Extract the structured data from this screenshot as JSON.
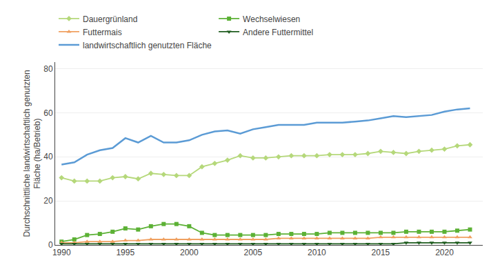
{
  "chart_data": {
    "type": "line",
    "ylabel": "Durchschnittliche landwirtschaftlich genutzten\nFläche (ha/Betrieb)",
    "x": [
      1990,
      1991,
      1992,
      1993,
      1994,
      1995,
      1996,
      1997,
      1998,
      1999,
      2000,
      2001,
      2002,
      2003,
      2004,
      2005,
      2006,
      2007,
      2008,
      2009,
      2010,
      2011,
      2012,
      2013,
      2014,
      2015,
      2016,
      2017,
      2018,
      2019,
      2020,
      2021,
      2022
    ],
    "series": [
      {
        "name": "Dauergrünland",
        "color": "#b5d87a",
        "marker": "diamond",
        "values": [
          30.5,
          29.0,
          29.0,
          29.0,
          30.5,
          31.0,
          30.0,
          32.5,
          32.0,
          31.5,
          31.5,
          35.5,
          37.0,
          38.5,
          40.5,
          39.5,
          39.5,
          40.0,
          40.5,
          40.5,
          40.5,
          41.0,
          41.0,
          41.0,
          41.5,
          42.5,
          42.0,
          41.5,
          42.5,
          43.0,
          43.5,
          45.0,
          45.5
        ]
      },
      {
        "name": "Wechselwiesen",
        "color": "#5cb135",
        "marker": "square",
        "values": [
          1.5,
          2.5,
          4.5,
          5.0,
          6.0,
          7.5,
          7.0,
          8.5,
          9.5,
          9.5,
          8.5,
          5.5,
          4.5,
          4.5,
          4.5,
          4.5,
          4.5,
          5.0,
          5.0,
          5.0,
          5.0,
          5.5,
          5.5,
          5.5,
          5.5,
          5.5,
          5.5,
          6.0,
          6.0,
          6.0,
          6.0,
          6.5,
          7.0
        ]
      },
      {
        "name": "Futtermais",
        "color": "#f0a060",
        "marker": "triangle-up",
        "values": [
          1.0,
          1.0,
          1.5,
          1.5,
          1.5,
          2.0,
          2.0,
          2.5,
          2.5,
          2.5,
          2.5,
          2.5,
          2.5,
          2.5,
          2.5,
          2.5,
          2.5,
          3.0,
          3.0,
          3.0,
          3.0,
          3.0,
          3.0,
          3.0,
          3.0,
          3.5,
          3.5,
          3.5,
          3.5,
          3.5,
          3.5,
          3.5,
          3.5
        ]
      },
      {
        "name": "Andere Futtermittel",
        "color": "#1e5c1e",
        "marker": "triangle-down",
        "values": [
          0.5,
          0.5,
          0.5,
          0.5,
          0.5,
          0.5,
          0.5,
          0.5,
          0.5,
          0.5,
          0.5,
          0.5,
          0.5,
          0.5,
          0.5,
          0.5,
          0.5,
          0.5,
          0.5,
          0.5,
          0.5,
          0.5,
          0.5,
          0.5,
          0.5,
          0.5,
          0.5,
          1.0,
          1.0,
          1.0,
          1.0,
          1.0,
          1.0
        ]
      },
      {
        "name": "landwirtschaftlich genutzten Fläche",
        "color": "#5b9bd5",
        "values": [
          36.5,
          37.5,
          41.0,
          43.0,
          44.0,
          48.5,
          46.5,
          49.5,
          46.5,
          46.5,
          47.5,
          50.0,
          51.5,
          52.0,
          50.5,
          52.5,
          53.5,
          54.5,
          54.5,
          54.5,
          55.5,
          55.5,
          55.5,
          56.0,
          56.5,
          57.5,
          58.5,
          58.0,
          58.5,
          59.0,
          60.5,
          61.5,
          62.0
        ]
      }
    ],
    "xlim": [
      1989.5,
      2023
    ],
    "xticks": [
      1990,
      1995,
      2000,
      2005,
      2010,
      2015,
      2020
    ],
    "ylim": [
      0,
      83
    ],
    "yticks": [
      0,
      20,
      40,
      60,
      80
    ],
    "grid": true,
    "legend": "upper left"
  }
}
